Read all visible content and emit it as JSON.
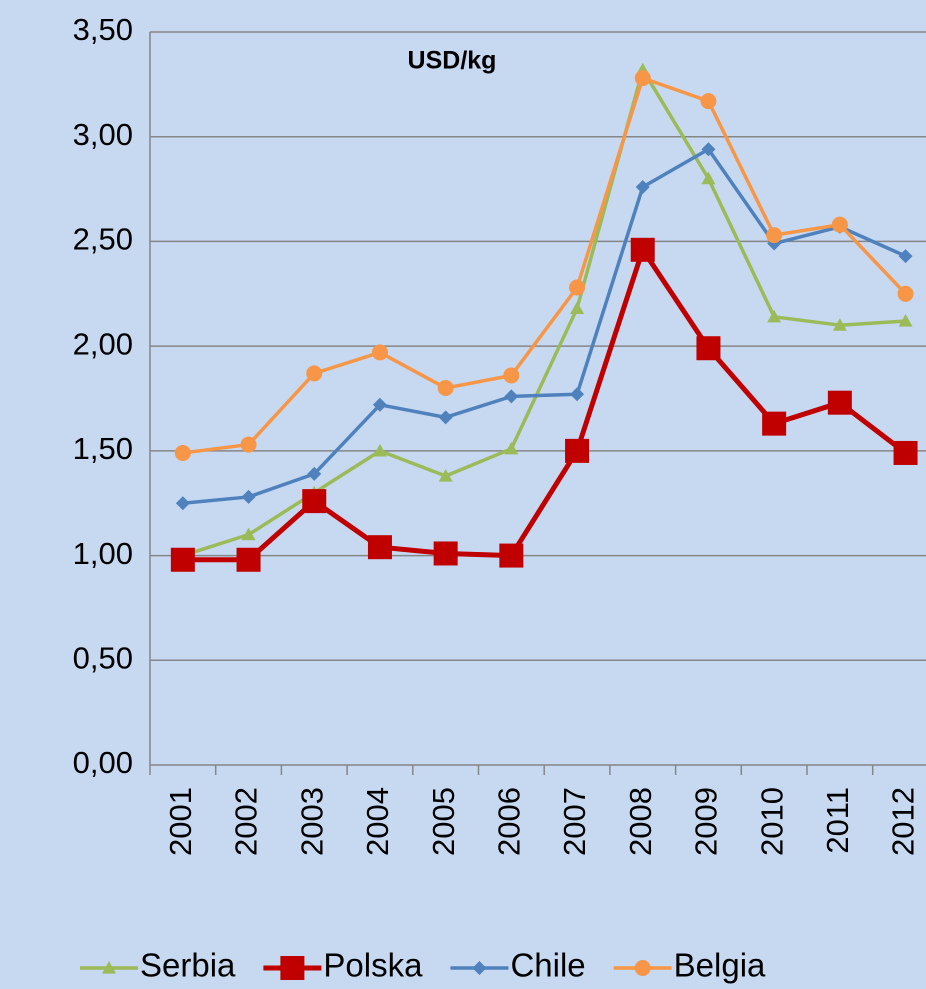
{
  "chart_data": {
    "type": "line",
    "title": "USD/kg",
    "categories": [
      "2001",
      "2002",
      "2003",
      "2004",
      "2005",
      "2006",
      "2007",
      "2008",
      "2009",
      "2010",
      "2011",
      "2012"
    ],
    "series": [
      {
        "name": "Serbia",
        "color": "#9bbb59",
        "marker": "triangle",
        "values": [
          1.0,
          1.1,
          1.3,
          1.5,
          1.38,
          1.51,
          2.18,
          3.32,
          2.8,
          2.14,
          2.1,
          2.12
        ]
      },
      {
        "name": "Polska",
        "color": "#c00000",
        "marker": "square",
        "values": [
          0.98,
          0.98,
          1.26,
          1.04,
          1.01,
          1.0,
          1.5,
          2.46,
          1.99,
          1.63,
          1.73,
          1.49
        ]
      },
      {
        "name": "Chile",
        "color": "#4f81bd",
        "marker": "diamond",
        "values": [
          1.25,
          1.28,
          1.39,
          1.72,
          1.66,
          1.76,
          1.77,
          2.76,
          2.94,
          2.49,
          2.57,
          2.43
        ]
      },
      {
        "name": "Belgia",
        "color": "#f79646",
        "marker": "circle",
        "values": [
          1.49,
          1.53,
          1.87,
          1.97,
          1.8,
          1.86,
          2.28,
          3.28,
          3.17,
          2.53,
          2.58,
          2.25
        ]
      }
    ],
    "ylim": [
      0,
      3.5
    ],
    "yticks": [
      {
        "value": 0,
        "label": "0,00"
      },
      {
        "value": 0.5,
        "label": "0,50"
      },
      {
        "value": 1,
        "label": "1,00"
      },
      {
        "value": 1.5,
        "label": "1,50"
      },
      {
        "value": 2,
        "label": "2,00"
      },
      {
        "value": 2.5,
        "label": "2,50"
      },
      {
        "value": 3,
        "label": "3,00"
      },
      {
        "value": 3.5,
        "label": "3,50"
      }
    ],
    "grid": true,
    "legend": "bottom"
  }
}
